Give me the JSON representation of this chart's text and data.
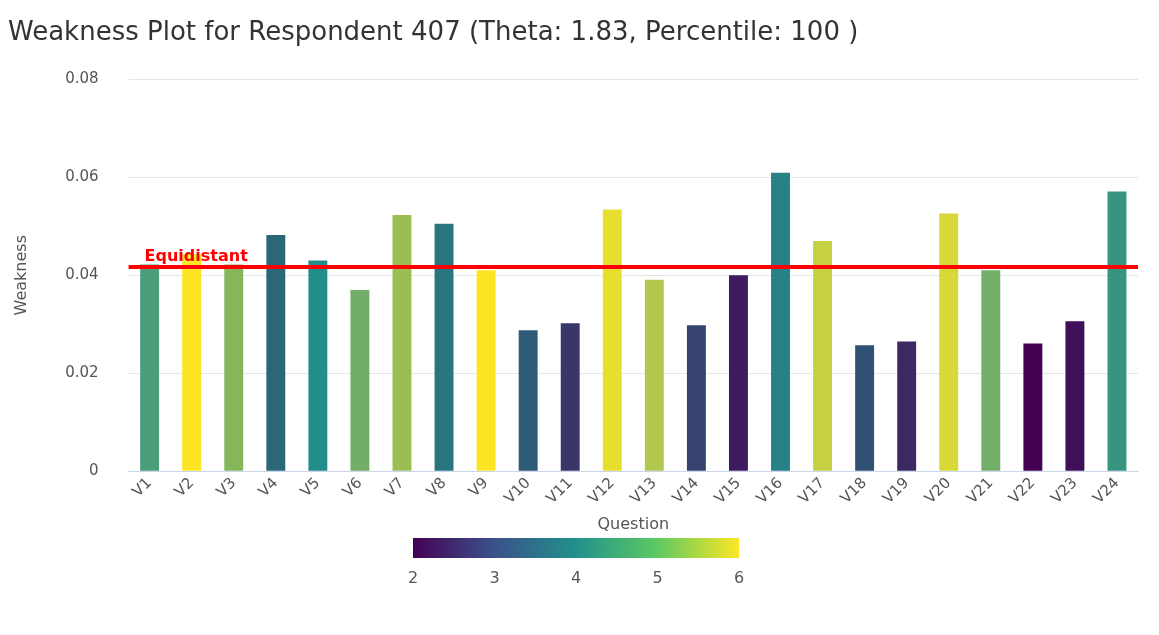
{
  "chart_data": {
    "type": "bar",
    "title": "Weakness Plot for Respondent 407 (Theta: 1.83, Percentile: 100 )",
    "xlabel": "Question",
    "ylabel": "Weakness",
    "categories": [
      "V1",
      "V2",
      "V3",
      "V4",
      "V5",
      "V6",
      "V7",
      "V8",
      "V9",
      "V10",
      "V11",
      "V12",
      "V13",
      "V14",
      "V15",
      "V16",
      "V17",
      "V18",
      "V19",
      "V20",
      "V21",
      "V22",
      "V23",
      "V24"
    ],
    "values": [
      0.0422,
      0.0443,
      0.0422,
      0.0482,
      0.043,
      0.037,
      0.0523,
      0.0505,
      0.041,
      0.0288,
      0.0302,
      0.0534,
      0.0391,
      0.0298,
      0.04,
      0.0609,
      0.047,
      0.0257,
      0.0265,
      0.0526,
      0.041,
      0.0261,
      0.0306,
      0.0571
    ],
    "colors": [
      "#4c9e7a",
      "#fbe424",
      "#86b65c",
      "#2a6878",
      "#238d8a",
      "#72ae68",
      "#9bbe52",
      "#287680",
      "#fbe424",
      "#2e5b78",
      "#39366a",
      "#e8de2f",
      "#b1c74e",
      "#35436e",
      "#3f1c5f",
      "#268287",
      "#c5d043",
      "#315174",
      "#3c2863",
      "#d8d937",
      "#73af68",
      "#440154",
      "#3f0f5a",
      "#35957f"
    ],
    "ylim": [
      0,
      0.08
    ],
    "yticks": [
      0,
      0.02,
      0.04,
      0.06,
      0.08
    ],
    "grid": "y",
    "legend": false,
    "ref_lines": [
      {
        "axis": "y",
        "value": 0.0417,
        "label": "Equidistant",
        "color": "#ff0000"
      }
    ],
    "clim": [
      2,
      6
    ],
    "cticks": [
      2,
      3,
      4,
      5,
      6
    ]
  }
}
